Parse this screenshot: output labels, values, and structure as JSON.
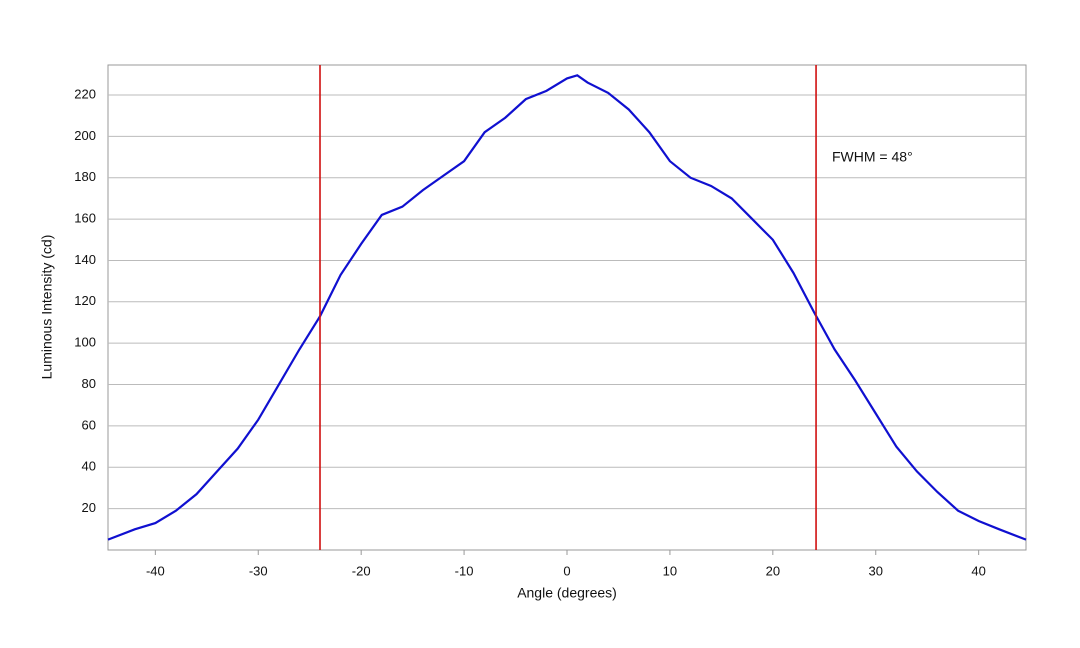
{
  "chart_data": {
    "type": "line",
    "xlabel": "Angle (degrees)",
    "ylabel": "Luminous Intensity (cd)",
    "annotation": "FWHM = 48°",
    "x": [
      -44.6,
      -42,
      -40,
      -38,
      -36,
      -34,
      -32,
      -30,
      -28,
      -26,
      -24,
      -22,
      -20,
      -18,
      -16,
      -14,
      -12,
      -10,
      -8,
      -6,
      -4,
      -2,
      0,
      1,
      2,
      4,
      6,
      8,
      10,
      12,
      14,
      16,
      18,
      20,
      22,
      24,
      26,
      28,
      30,
      32,
      34,
      36,
      38,
      40,
      42,
      44.6
    ],
    "series": [
      {
        "color": "#1010d0",
        "values": [
          5,
          10,
          13,
          19,
          27,
          38,
          49,
          63,
          80,
          97,
          113,
          133,
          148,
          162,
          166,
          174,
          181,
          188,
          202,
          209,
          218,
          222,
          228,
          229.5,
          226,
          221,
          213,
          202,
          188,
          180,
          176,
          170,
          160,
          150,
          134,
          115,
          97,
          82,
          66,
          50,
          38,
          28,
          19,
          14,
          10,
          5
        ]
      }
    ],
    "vlines": [
      {
        "x": -24,
        "color": "#d01010"
      },
      {
        "x": 24.2,
        "color": "#d01010"
      }
    ],
    "xlim": [
      -44.6,
      44.6
    ],
    "ylim": [
      0,
      234.5
    ],
    "xticks": [
      -40,
      -30,
      -20,
      -10,
      0,
      10,
      20,
      30,
      40
    ],
    "yticks": [
      20,
      40,
      60,
      80,
      100,
      120,
      140,
      160,
      180,
      200,
      220
    ],
    "grid": true
  }
}
